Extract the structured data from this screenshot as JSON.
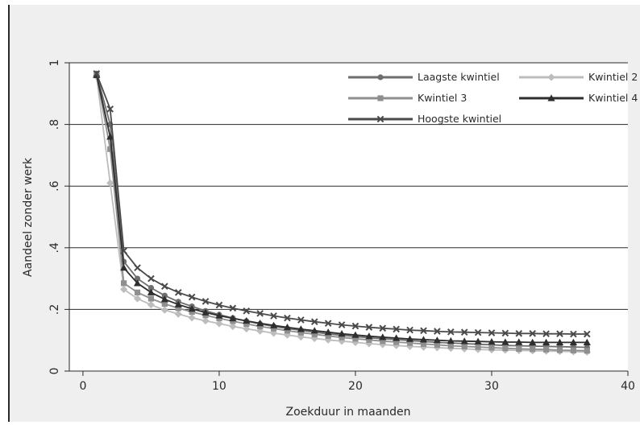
{
  "chart_data": {
    "type": "line",
    "title": "",
    "xlabel": "Zoekduur in maanden",
    "ylabel": "Aandeel zonder werk",
    "xlim": [
      -1,
      40
    ],
    "ylim": [
      0,
      1
    ],
    "x_ticks": [
      0,
      10,
      20,
      30,
      40
    ],
    "y_ticks": [
      0,
      0.2,
      0.4,
      0.6,
      0.8,
      1
    ],
    "y_tick_labels": [
      "0",
      ".2",
      ".4",
      ".6",
      ".8",
      "1"
    ],
    "grid": "horizontal",
    "legend_position": "top-right",
    "x": [
      1,
      2,
      3,
      4,
      5,
      6,
      7,
      8,
      9,
      10,
      11,
      12,
      13,
      14,
      15,
      16,
      17,
      18,
      19,
      20,
      21,
      22,
      23,
      24,
      25,
      26,
      27,
      28,
      29,
      30,
      31,
      32,
      33,
      34,
      35,
      36,
      37
    ],
    "series": [
      {
        "name": "Laagste kwintiel",
        "color": "#6e6e6e",
        "marker": "circle",
        "values": [
          0.965,
          0.8,
          0.355,
          0.3,
          0.27,
          0.245,
          0.225,
          0.21,
          0.195,
          0.183,
          0.172,
          0.162,
          0.153,
          0.145,
          0.138,
          0.132,
          0.126,
          0.121,
          0.116,
          0.112,
          0.108,
          0.105,
          0.102,
          0.099,
          0.096,
          0.093,
          0.091,
          0.089,
          0.087,
          0.085,
          0.083,
          0.082,
          0.081,
          0.08,
          0.079,
          0.078,
          0.077
        ]
      },
      {
        "name": "Kwintiel 2",
        "color": "#bdbdbd",
        "marker": "diamond",
        "values": [
          0.955,
          0.61,
          0.265,
          0.235,
          0.215,
          0.198,
          0.185,
          0.173,
          0.163,
          0.154,
          0.145,
          0.137,
          0.13,
          0.123,
          0.117,
          0.111,
          0.106,
          0.101,
          0.097,
          0.093,
          0.089,
          0.086,
          0.083,
          0.08,
          0.078,
          0.076,
          0.074,
          0.072,
          0.07,
          0.069,
          0.068,
          0.067,
          0.066,
          0.065,
          0.064,
          0.063,
          0.062
        ]
      },
      {
        "name": "Kwintiel 3",
        "color": "#8f8f8f",
        "marker": "square",
        "values": [
          0.96,
          0.72,
          0.285,
          0.255,
          0.235,
          0.218,
          0.204,
          0.192,
          0.181,
          0.171,
          0.162,
          0.153,
          0.145,
          0.138,
          0.131,
          0.125,
          0.119,
          0.114,
          0.109,
          0.105,
          0.101,
          0.097,
          0.094,
          0.091,
          0.088,
          0.085,
          0.082,
          0.08,
          0.078,
          0.076,
          0.074,
          0.072,
          0.071,
          0.07,
          0.068,
          0.067,
          0.066
        ]
      },
      {
        "name": "Kwintiel 4",
        "color": "#2e2e2e",
        "marker": "triangle",
        "values": [
          0.96,
          0.76,
          0.335,
          0.285,
          0.255,
          0.233,
          0.216,
          0.202,
          0.19,
          0.18,
          0.171,
          0.163,
          0.155,
          0.148,
          0.142,
          0.136,
          0.131,
          0.126,
          0.121,
          0.117,
          0.113,
          0.11,
          0.107,
          0.104,
          0.102,
          0.1,
          0.098,
          0.097,
          0.096,
          0.095,
          0.094,
          0.094,
          0.093,
          0.093,
          0.093,
          0.093,
          0.093
        ]
      },
      {
        "name": "Hoogste kwintiel",
        "color": "#4a4a4a",
        "marker": "cross",
        "values": [
          0.965,
          0.85,
          0.39,
          0.335,
          0.3,
          0.275,
          0.255,
          0.24,
          0.226,
          0.214,
          0.204,
          0.195,
          0.187,
          0.179,
          0.172,
          0.166,
          0.16,
          0.155,
          0.15,
          0.146,
          0.142,
          0.139,
          0.136,
          0.133,
          0.131,
          0.129,
          0.127,
          0.126,
          0.125,
          0.124,
          0.123,
          0.122,
          0.122,
          0.121,
          0.121,
          0.12,
          0.12
        ]
      }
    ]
  }
}
